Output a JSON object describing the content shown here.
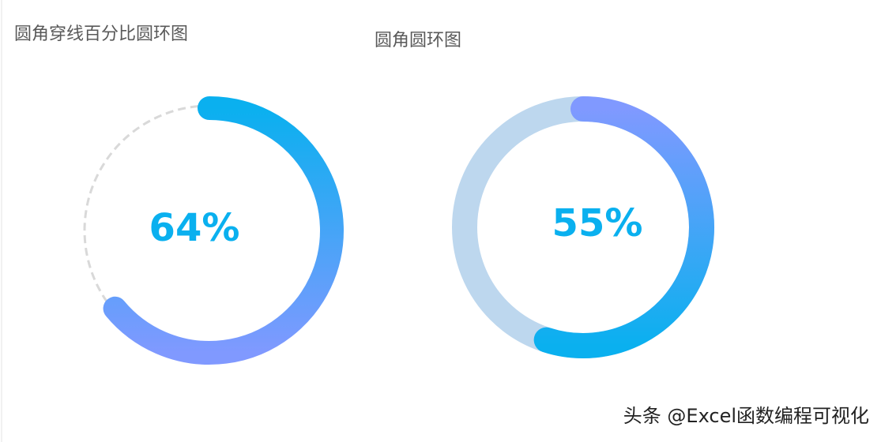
{
  "chart_data": [
    {
      "type": "donut",
      "title": "圆角穿线百分比圆环图",
      "values": [
        64
      ],
      "value_labels": [
        "64%"
      ],
      "max": 100,
      "colors": [
        "#0ab0ef",
        "#8099ff"
      ],
      "track": "dashed",
      "track_color": "#d9d9d9"
    },
    {
      "type": "donut",
      "title": "圆角圆环图",
      "values": [
        55
      ],
      "value_labels": [
        "55%"
      ],
      "max": 100,
      "colors": [
        "#8099ff",
        "#0ab0ef"
      ],
      "track": "solid",
      "track_color": "#bdd7ee"
    }
  ],
  "watermark": "头条 @Excel函数编程可视化"
}
